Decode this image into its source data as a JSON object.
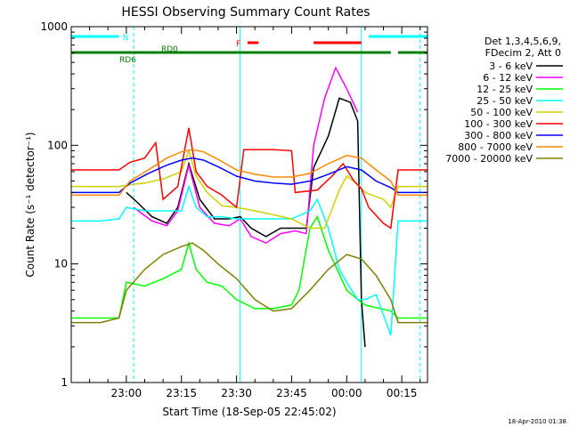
{
  "chart_data": {
    "type": "line",
    "title": "HESSI Observing Summary Count Rates",
    "xlabel": "Start Time (18-Sep-05 22:45:02)",
    "ylabel": "Count Rate (s⁻¹ detector⁻¹)",
    "y_scale": "log",
    "ylim": [
      1,
      1000
    ],
    "xlim": [
      "22:45",
      "00:22"
    ],
    "y_ticks": [
      {
        "value": 1,
        "label": "1"
      },
      {
        "value": 10,
        "label": "10"
      },
      {
        "value": 100,
        "label": "100"
      },
      {
        "value": 1000,
        "label": "1000"
      }
    ],
    "x_ticks": [
      {
        "value": "23:00",
        "label": "23:00"
      },
      {
        "value": "23:15",
        "label": "23:15"
      },
      {
        "value": "23:30",
        "label": "23:30"
      },
      {
        "value": "23:45",
        "label": "23:45"
      },
      {
        "value": "00:00",
        "label": "00:00"
      },
      {
        "value": "00:15",
        "label": "00:15"
      }
    ],
    "legend_header": [
      "Det 1,3,4,5,6,9,",
      "FDecim 2, Att 0"
    ],
    "legend_position": "right",
    "series": [
      {
        "name": "3 - 6 keV",
        "color": "#000000",
        "points": [
          [
            "23:00",
            40
          ],
          [
            "23:03",
            33
          ],
          [
            "23:07",
            25
          ],
          [
            "23:11",
            22
          ],
          [
            "23:14",
            30
          ],
          [
            "23:17",
            70
          ],
          [
            "23:20",
            35
          ],
          [
            "23:24",
            24
          ],
          [
            "23:28",
            24
          ],
          [
            "23:31",
            25
          ],
          [
            "23:34",
            20
          ],
          [
            "23:38",
            17
          ],
          [
            "23:42",
            20
          ],
          [
            "23:46",
            20
          ],
          [
            "23:49",
            20
          ],
          [
            "23:51",
            65
          ],
          [
            "23:55",
            120
          ],
          [
            "23:58",
            250
          ],
          [
            "00:01",
            230
          ],
          [
            "00:03",
            160
          ],
          [
            "00:04",
            5
          ],
          [
            "00:05",
            2
          ]
        ]
      },
      {
        "name": "6 - 12 keV",
        "color": "#ff00ff",
        "points": [
          [
            "23:02",
            30
          ],
          [
            "23:07",
            23
          ],
          [
            "23:11",
            21
          ],
          [
            "23:14",
            28
          ],
          [
            "23:17",
            68
          ],
          [
            "23:20",
            30
          ],
          [
            "23:24",
            22
          ],
          [
            "23:28",
            21
          ],
          [
            "23:31",
            24
          ],
          [
            "23:34",
            17
          ],
          [
            "23:38",
            15
          ],
          [
            "23:42",
            18
          ],
          [
            "23:46",
            19
          ],
          [
            "23:49",
            18
          ],
          [
            "23:51",
            100
          ],
          [
            "23:54",
            250
          ],
          [
            "23:57",
            450
          ],
          [
            "00:00",
            300
          ],
          [
            "00:03",
            190
          ]
        ]
      },
      {
        "name": "12 - 25 keV",
        "color": "#00ff00",
        "points": [
          [
            "22:45",
            3.5
          ],
          [
            "22:53",
            3.5
          ],
          [
            "22:58",
            3.5
          ],
          [
            "23:00",
            7
          ],
          [
            "23:05",
            6.5
          ],
          [
            "23:10",
            7.5
          ],
          [
            "23:15",
            9
          ],
          [
            "23:17",
            15
          ],
          [
            "23:19",
            9
          ],
          [
            "23:22",
            7
          ],
          [
            "23:26",
            6.5
          ],
          [
            "23:30",
            5
          ],
          [
            "23:35",
            4.2
          ],
          [
            "23:40",
            4.2
          ],
          [
            "23:45",
            4.5
          ],
          [
            "23:47",
            6
          ],
          [
            "23:50",
            20
          ],
          [
            "23:52",
            25
          ],
          [
            "23:55",
            13
          ],
          [
            "00:00",
            6
          ],
          [
            "00:03",
            5
          ],
          [
            "00:05",
            4.5
          ],
          [
            "00:12",
            4
          ],
          [
            "00:14",
            3.5
          ],
          [
            "00:22",
            3.5
          ]
        ]
      },
      {
        "name": "25 - 50 keV",
        "color": "#00ffff",
        "points": [
          [
            "22:45",
            23
          ],
          [
            "22:53",
            23
          ],
          [
            "22:58",
            24
          ],
          [
            "23:00",
            30
          ],
          [
            "23:05",
            28
          ],
          [
            "23:10",
            28
          ],
          [
            "23:15",
            28
          ],
          [
            "23:17",
            45
          ],
          [
            "23:19",
            30
          ],
          [
            "23:22",
            25
          ],
          [
            "23:26",
            25
          ],
          [
            "23:30",
            24
          ],
          [
            "23:35",
            24
          ],
          [
            "23:40",
            24
          ],
          [
            "23:45",
            24
          ],
          [
            "23:50",
            28
          ],
          [
            "23:52",
            35
          ],
          [
            "23:55",
            20
          ],
          [
            "23:58",
            9
          ],
          [
            "00:00",
            7
          ],
          [
            "00:03",
            5
          ],
          [
            "00:05",
            5
          ],
          [
            "00:08",
            5.5
          ],
          [
            "00:12",
            2.5
          ],
          [
            "00:14",
            23
          ],
          [
            "00:22",
            23
          ]
        ]
      },
      {
        "name": "50 - 100 keV",
        "color": "#d0d000",
        "points": [
          [
            "22:45",
            45
          ],
          [
            "22:53",
            45
          ],
          [
            "22:58",
            45
          ],
          [
            "23:02",
            47
          ],
          [
            "23:05",
            48
          ],
          [
            "23:10",
            52
          ],
          [
            "23:15",
            60
          ],
          [
            "23:17",
            90
          ],
          [
            "23:19",
            55
          ],
          [
            "23:22",
            40
          ],
          [
            "23:26",
            31
          ],
          [
            "23:30",
            30
          ],
          [
            "23:35",
            28
          ],
          [
            "23:40",
            26
          ],
          [
            "23:45",
            24
          ],
          [
            "23:50",
            20
          ],
          [
            "23:54",
            20
          ],
          [
            "23:58",
            42
          ],
          [
            "00:00",
            55
          ],
          [
            "00:03",
            47
          ],
          [
            "00:05",
            40
          ],
          [
            "00:10",
            35
          ],
          [
            "00:12",
            30
          ],
          [
            "00:14",
            45
          ],
          [
            "00:22",
            45
          ]
        ]
      },
      {
        "name": "100 - 300 keV",
        "color": "#ff0000",
        "points": [
          [
            "22:45",
            62
          ],
          [
            "22:53",
            62
          ],
          [
            "22:58",
            62
          ],
          [
            "23:01",
            72
          ],
          [
            "23:05",
            78
          ],
          [
            "23:08",
            105
          ],
          [
            "23:10",
            35
          ],
          [
            "23:14",
            45
          ],
          [
            "23:17",
            140
          ],
          [
            "23:19",
            60
          ],
          [
            "23:22",
            45
          ],
          [
            "23:26",
            38
          ],
          [
            "23:30",
            30
          ],
          [
            "23:32",
            92
          ],
          [
            "23:40",
            92
          ],
          [
            "23:45",
            90
          ],
          [
            "23:46",
            40
          ],
          [
            "23:52",
            42
          ],
          [
            "23:56",
            55
          ],
          [
            "23:59",
            70
          ],
          [
            "00:02",
            50
          ],
          [
            "00:04",
            43
          ],
          [
            "00:06",
            30
          ],
          [
            "00:10",
            22
          ],
          [
            "00:12",
            20
          ],
          [
            "00:14",
            62
          ],
          [
            "00:22",
            62
          ]
        ]
      },
      {
        "name": "300 - 800 keV",
        "color": "#0000ff",
        "points": [
          [
            "22:45",
            40
          ],
          [
            "22:53",
            40
          ],
          [
            "22:58",
            40
          ],
          [
            "23:01",
            48
          ],
          [
            "23:06",
            58
          ],
          [
            "23:11",
            68
          ],
          [
            "23:15",
            75
          ],
          [
            "23:18",
            78
          ],
          [
            "23:21",
            75
          ],
          [
            "23:25",
            66
          ],
          [
            "23:30",
            55
          ],
          [
            "23:35",
            50
          ],
          [
            "23:40",
            48
          ],
          [
            "23:45",
            47
          ],
          [
            "23:50",
            50
          ],
          [
            "23:55",
            57
          ],
          [
            "00:00",
            66
          ],
          [
            "00:04",
            62
          ],
          [
            "00:08",
            50
          ],
          [
            "00:12",
            44
          ],
          [
            "00:14",
            40
          ],
          [
            "00:22",
            40
          ]
        ]
      },
      {
        "name": "800 - 7000 keV",
        "color": "#ff8800",
        "points": [
          [
            "22:45",
            38
          ],
          [
            "22:53",
            38
          ],
          [
            "22:58",
            38
          ],
          [
            "23:01",
            50
          ],
          [
            "23:06",
            62
          ],
          [
            "23:11",
            78
          ],
          [
            "23:15",
            88
          ],
          [
            "23:18",
            92
          ],
          [
            "23:21",
            88
          ],
          [
            "23:25",
            76
          ],
          [
            "23:30",
            62
          ],
          [
            "23:35",
            57
          ],
          [
            "23:40",
            54
          ],
          [
            "23:45",
            54
          ],
          [
            "23:50",
            58
          ],
          [
            "23:55",
            70
          ],
          [
            "00:00",
            82
          ],
          [
            "00:04",
            78
          ],
          [
            "00:08",
            62
          ],
          [
            "00:12",
            50
          ],
          [
            "00:14",
            38
          ],
          [
            "00:22",
            38
          ]
        ]
      },
      {
        "name": "7000 - 20000 keV",
        "color": "#808000",
        "points": [
          [
            "22:45",
            3.2
          ],
          [
            "22:53",
            3.2
          ],
          [
            "22:58",
            3.5
          ],
          [
            "23:00",
            6
          ],
          [
            "23:05",
            9
          ],
          [
            "23:10",
            12
          ],
          [
            "23:15",
            14
          ],
          [
            "23:18",
            15
          ],
          [
            "23:21",
            13
          ],
          [
            "23:25",
            10
          ],
          [
            "23:30",
            7.5
          ],
          [
            "23:35",
            5
          ],
          [
            "23:40",
            4
          ],
          [
            "23:45",
            4.2
          ],
          [
            "23:50",
            6
          ],
          [
            "23:55",
            9
          ],
          [
            "00:00",
            12
          ],
          [
            "00:04",
            11
          ],
          [
            "00:08",
            8
          ],
          [
            "00:12",
            5
          ],
          [
            "00:14",
            3.2
          ],
          [
            "00:22",
            3.2
          ]
        ]
      }
    ],
    "annotations": [
      {
        "label": "N",
        "color": "#00ffff",
        "segments": [
          [
            "22:45",
            "22:58"
          ],
          [
            "00:06",
            "00:22"
          ]
        ]
      },
      {
        "label": "F",
        "color": "#ff0000",
        "segments": [
          [
            "23:33",
            "23:36"
          ],
          [
            "23:51",
            "00:04"
          ]
        ]
      },
      {
        "label": "RD0",
        "color": "#008000",
        "segments": [
          [
            "23:09",
            "23:31"
          ],
          [
            "23:31",
            "23:45"
          ],
          [
            "23:45",
            "00:12"
          ],
          [
            "00:14",
            "00:22"
          ]
        ]
      },
      {
        "label": "RD6",
        "color": "#008000",
        "segments": [
          [
            "22:45",
            "23:09"
          ]
        ]
      }
    ],
    "vertical_markers": [
      {
        "time": "22:45",
        "color": "#00ffff",
        "style": "solid"
      },
      {
        "time": "23:02",
        "color": "#00ffff",
        "style": "dashed"
      },
      {
        "time": "23:31",
        "color": "#00ffff",
        "style": "solid"
      },
      {
        "time": "00:04",
        "color": "#00ffff",
        "style": "solid"
      },
      {
        "time": "00:20",
        "color": "#00ffff",
        "style": "dashed"
      }
    ]
  },
  "footer": {
    "timestamp": "18-Apr-2010 01:38"
  }
}
